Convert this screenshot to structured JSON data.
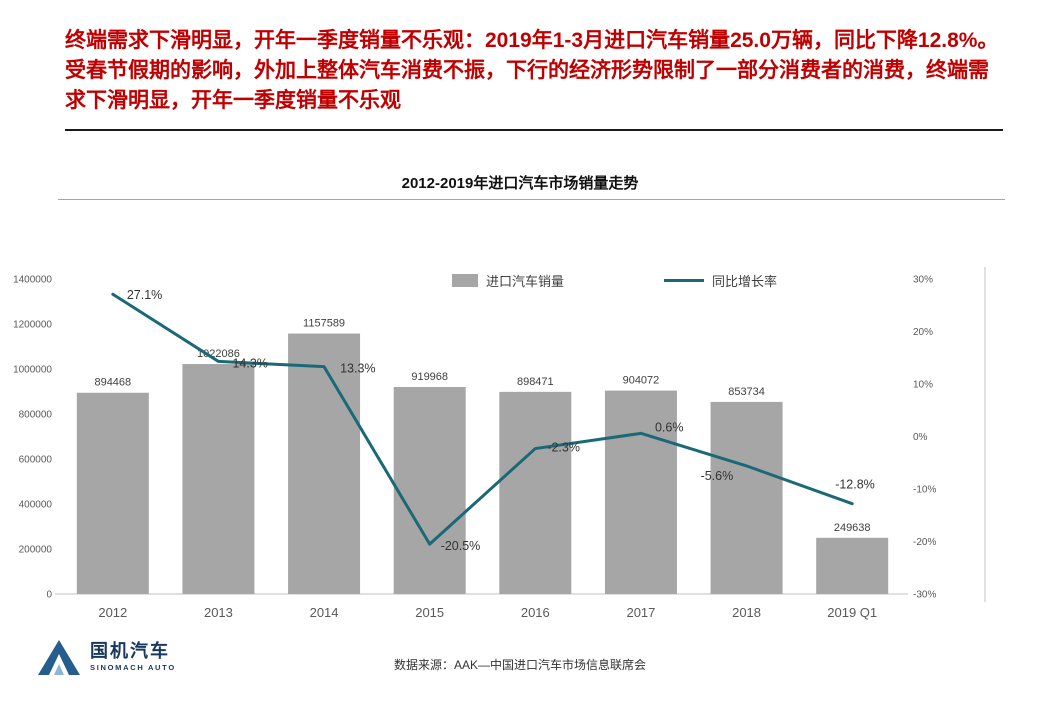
{
  "header": {
    "title": "终端需求下滑明显，开年一季度销量不乐观：2019年1-3月进口汽车销量25.0万辆，同比下降12.8%。受春节假期的影响，外加上整体汽车消费不振，下行的经济形势限制了一部分消费者的消费，终端需求下滑明显，开年一季度销量不乐观"
  },
  "chart_data": {
    "type": "bar+line",
    "title": "2012-2019年进口汽车市场销量走势",
    "categories": [
      "2012",
      "2013",
      "2014",
      "2015",
      "2016",
      "2017",
      "2018",
      "2019 Q1"
    ],
    "series": [
      {
        "name": "进口汽车销量",
        "type": "bar",
        "axis": "left",
        "color": "#a6a6a6",
        "values": [
          894468,
          1022086,
          1157589,
          919968,
          898471,
          904072,
          853734,
          249638
        ]
      },
      {
        "name": "同比增长率",
        "type": "line",
        "axis": "right",
        "color": "#1b6877",
        "unit": "%",
        "values": [
          27.1,
          14.3,
          13.3,
          -20.5,
          -2.3,
          0.6,
          -5.6,
          -12.8
        ],
        "labels": [
          "27.1%",
          "14.3%",
          "13.3%",
          "-20.5%",
          "-2.3%",
          "0.6%",
          "-5.6%",
          "-12.8%"
        ]
      }
    ],
    "left_axis": {
      "min": 0,
      "max": 1400000,
      "step": 200000
    },
    "right_axis": {
      "min": -30,
      "max": 30,
      "step": 10,
      "suffix": "%"
    },
    "legend_position": "top",
    "grid": false
  },
  "source": {
    "text": "数据来源：AAK—中国进口汽车市场信息联席会"
  },
  "logo": {
    "name": "国机汽车",
    "subtitle": "SINOMACH AUTO"
  }
}
